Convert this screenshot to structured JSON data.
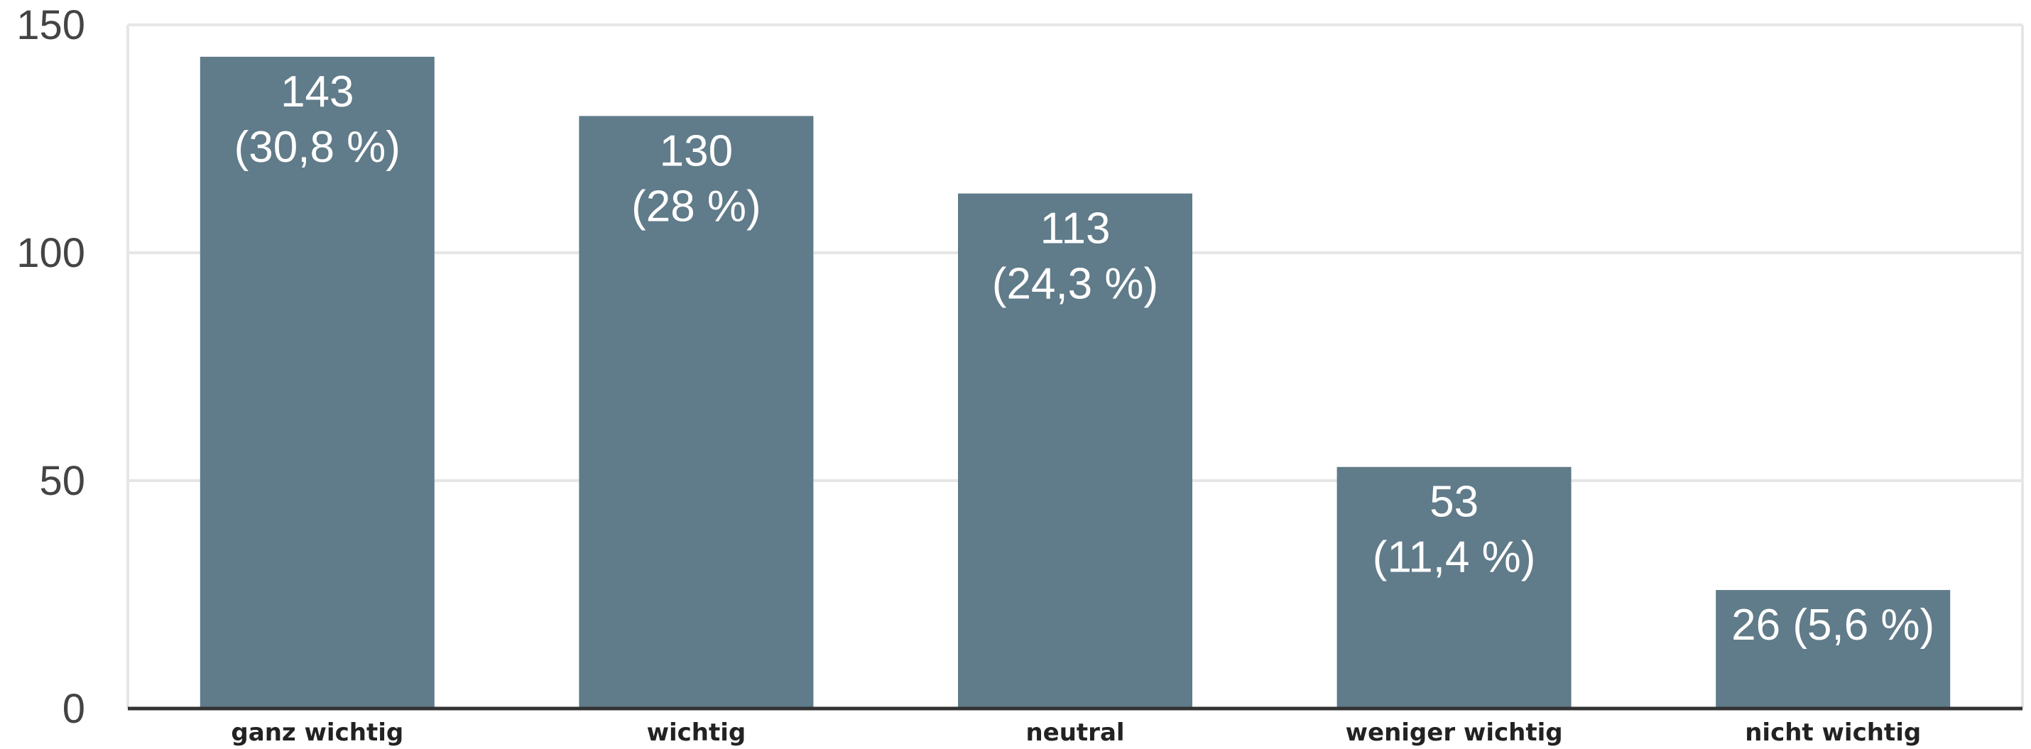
{
  "chart_data": {
    "type": "bar",
    "title": "",
    "xlabel": "",
    "ylabel": "",
    "categories": [
      "ganz wichtig",
      "wichtig",
      "neutral",
      "weniger wichtig",
      "nicht wichtig"
    ],
    "values": [
      143,
      130,
      113,
      53,
      26
    ],
    "data_labels": [
      [
        "143",
        "(30,8 %)"
      ],
      [
        "130",
        "(28 %)"
      ],
      [
        "113",
        "(24,3 %)"
      ],
      [
        "53",
        "(11,4 %)"
      ],
      [
        "26 (5,6 %)"
      ]
    ],
    "ylim": [
      0,
      150
    ],
    "yticks": [
      "0",
      "50",
      "100",
      "150"
    ],
    "grid": true,
    "legend": "none",
    "bar_color": "#607b89"
  }
}
